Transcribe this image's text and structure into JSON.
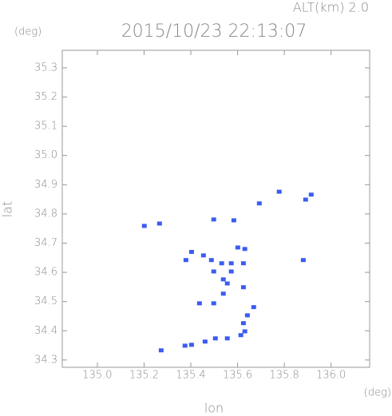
{
  "chart_data": {
    "type": "scatter",
    "title": "2015/10/23 22:13:07",
    "altitude_label": "ALT(km) 2.0",
    "x_label": "lon",
    "y_label": "lat",
    "x_unit": "(deg)",
    "y_unit": "(deg)",
    "xlim": [
      134.85,
      136.165
    ],
    "ylim": [
      34.275,
      35.36
    ],
    "xticks": [
      {
        "value": 135,
        "label": "135.0"
      },
      135.2,
      135.4,
      135.6,
      135.8,
      {
        "value": 136,
        "label": "136.0"
      }
    ],
    "yticks": [
      34.3,
      34.4,
      34.5,
      34.6,
      34.7,
      34.8,
      34.9,
      {
        "value": 35,
        "label": "35.0"
      },
      35.1,
      35.2,
      35.3
    ],
    "color": "#3a5cf0",
    "x": [
      135.201,
      135.266,
      135.379,
      135.403,
      135.454,
      135.488,
      135.498,
      135.532,
      135.573,
      135.601,
      135.631,
      135.625,
      135.498,
      135.584,
      135.693,
      135.778,
      135.891,
      135.915,
      135.881,
      135.556,
      135.539,
      135.498,
      135.437,
      135.625,
      135.625,
      135.642,
      135.631,
      135.614,
      135.505,
      135.556,
      135.461,
      135.403,
      135.375,
      135.273,
      135.669,
      135.573,
      135.539
    ],
    "y": [
      34.759,
      34.767,
      34.642,
      34.67,
      34.658,
      34.642,
      34.603,
      34.631,
      34.631,
      34.685,
      34.68,
      34.631,
      34.781,
      34.778,
      34.836,
      34.876,
      34.849,
      34.866,
      34.642,
      34.562,
      34.527,
      34.494,
      34.494,
      34.549,
      34.426,
      34.453,
      34.398,
      34.385,
      34.374,
      34.374,
      34.363,
      34.352,
      34.349,
      34.333,
      34.481,
      34.603,
      34.576
    ]
  }
}
